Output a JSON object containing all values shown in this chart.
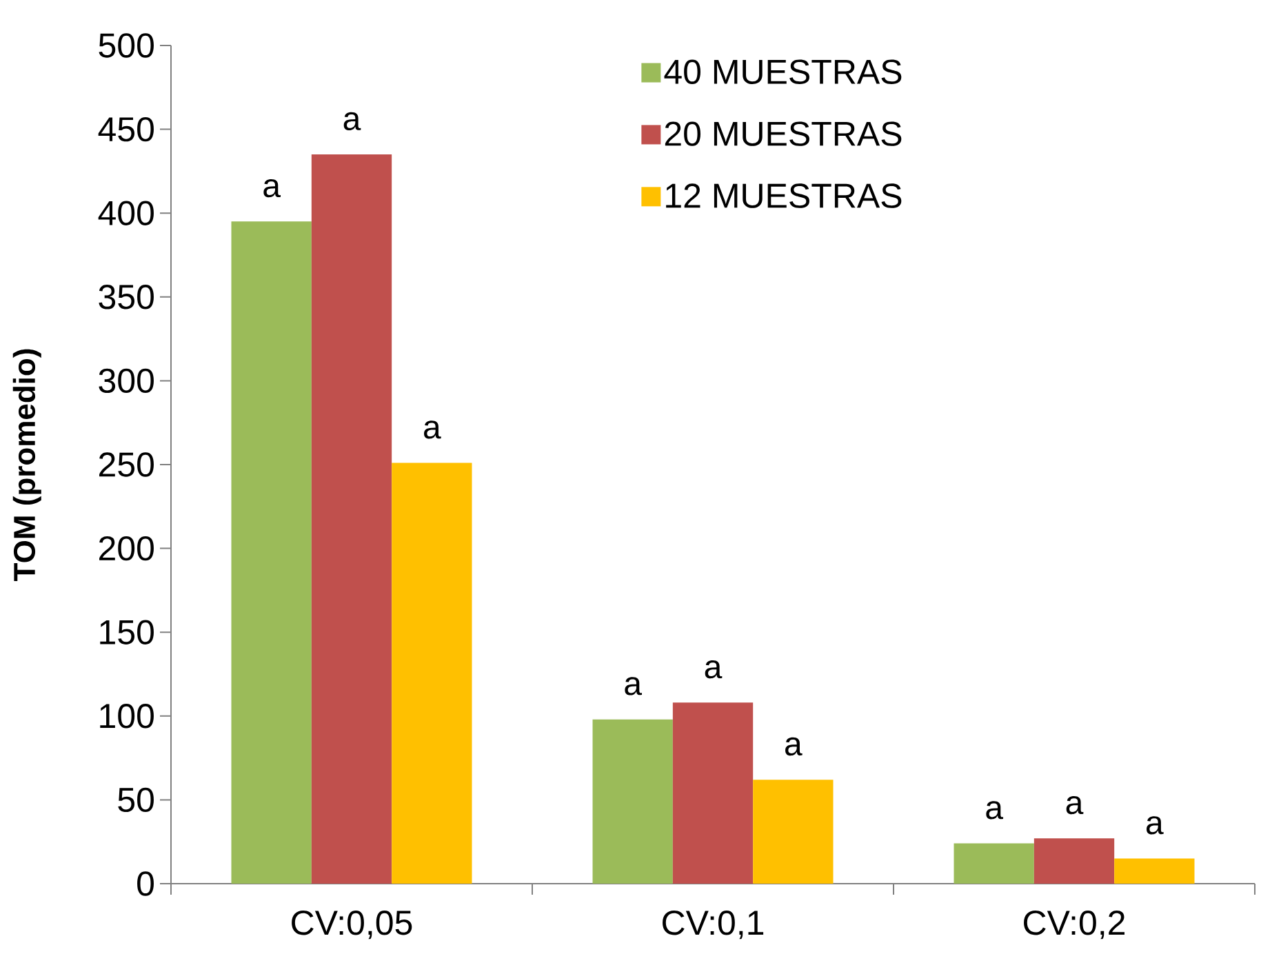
{
  "chart_data": {
    "type": "bar",
    "ylabel": "TOM (promedio)",
    "categories": [
      "CV:0,05",
      "CV:0,1",
      "CV:0,2"
    ],
    "series": [
      {
        "name": "40 MUESTRAS",
        "color": "#9bbb59",
        "values": [
          395,
          98,
          24
        ]
      },
      {
        "name": "20 MUESTRAS",
        "color": "#c0504d",
        "values": [
          435,
          108,
          27
        ]
      },
      {
        "name": "12 MUESTRAS",
        "color": "#ffc000",
        "values": [
          251,
          62,
          15
        ]
      }
    ],
    "ylim": [
      0,
      500
    ],
    "yticks": [
      0,
      50,
      100,
      150,
      200,
      250,
      300,
      350,
      400,
      450,
      500
    ],
    "legend": "top right",
    "grid": false,
    "annotations": [
      "a",
      "a",
      "a",
      "a",
      "a",
      "a",
      "a",
      "a",
      "a"
    ]
  }
}
